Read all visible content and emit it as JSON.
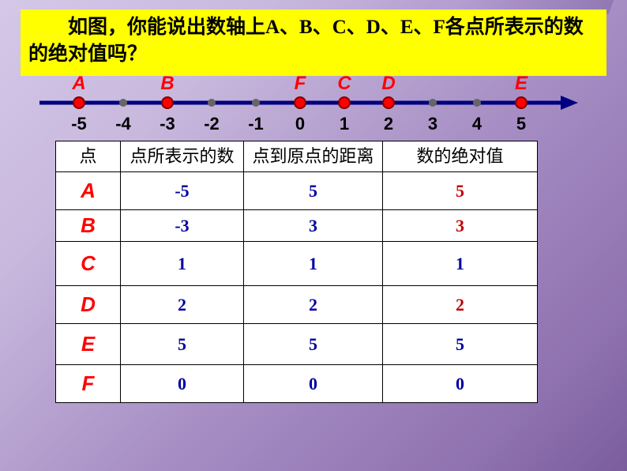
{
  "question_text": "如图，你能说出数轴上A、B、C、D、E、F各点所表示的数的绝对值吗？",
  "numberline": {
    "labels": [
      "-5",
      "-4",
      "-3",
      "-2",
      "-1",
      "0",
      "1",
      "2",
      "3",
      "4",
      "5"
    ],
    "points": [
      {
        "name": "A",
        "pos": -5
      },
      {
        "name": "B",
        "pos": -3
      },
      {
        "name": "F",
        "pos": 0
      },
      {
        "name": "C",
        "pos": 1
      },
      {
        "name": "D",
        "pos": 2
      },
      {
        "name": "E",
        "pos": 5
      }
    ],
    "line_color": "#000080",
    "dot_fill": "#ff0000",
    "dot_stroke": "#800000"
  },
  "table": {
    "headers": [
      "点",
      "点所表示的数",
      "点到原点的距离",
      "数的绝对值"
    ],
    "rows": [
      {
        "pt": "A",
        "rep": "-5",
        "dist": "5",
        "abs": "5",
        "abs_red": true
      },
      {
        "pt": "B",
        "rep": "-3",
        "dist": "3",
        "abs": "3",
        "abs_red": true
      },
      {
        "pt": "C",
        "rep": "1",
        "dist": "1",
        "abs": "1",
        "abs_red": false
      },
      {
        "pt": "D",
        "rep": "2",
        "dist": "2",
        "abs": "2",
        "abs_red": true
      },
      {
        "pt": "E",
        "rep": "5",
        "dist": "5",
        "abs": "5",
        "abs_red": false
      },
      {
        "pt": "F",
        "rep": "0",
        "dist": "0",
        "abs": "0",
        "abs_red": false
      }
    ]
  }
}
